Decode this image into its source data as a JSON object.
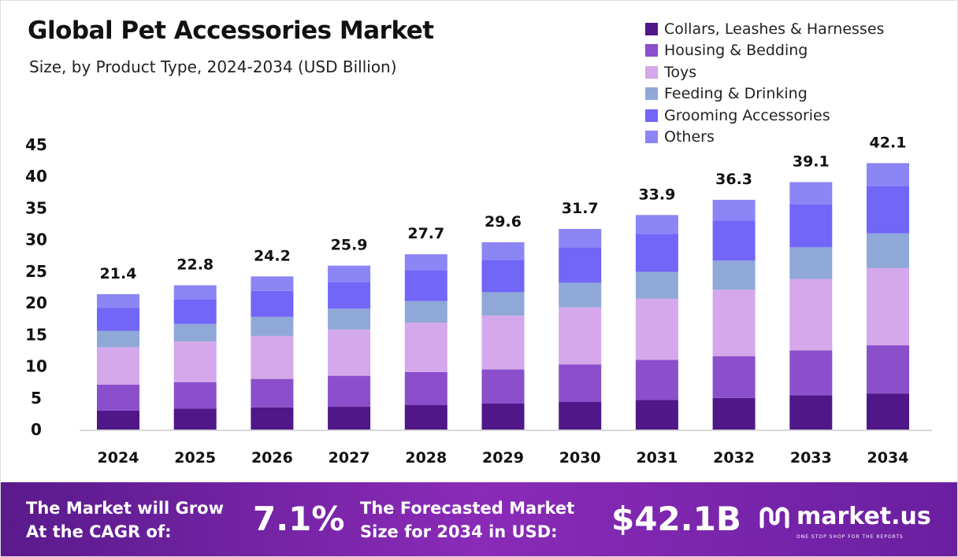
{
  "chart_data": {
    "type": "bar",
    "stacked": true,
    "title": "Global Pet Accessories Market",
    "subtitle": "Size, by Product Type, 2024-2034 (USD Billion)",
    "categories": [
      "2024",
      "2025",
      "2026",
      "2027",
      "2028",
      "2029",
      "2030",
      "2031",
      "2032",
      "2033",
      "2034"
    ],
    "totals": [
      "21.4",
      "22.8",
      "24.2",
      "25.9",
      "27.7",
      "29.6",
      "31.7",
      "33.9",
      "36.3",
      "39.1",
      "42.1"
    ],
    "series": [
      {
        "name": "Collars, Leashes & Harnesses",
        "color": "#4f1787",
        "values": [
          3.0,
          3.3,
          3.5,
          3.6,
          3.9,
          4.1,
          4.4,
          4.7,
          5.0,
          5.4,
          5.7
        ]
      },
      {
        "name": "Housing & Bedding",
        "color": "#8b4fcc",
        "values": [
          4.1,
          4.2,
          4.5,
          4.9,
          5.2,
          5.4,
          5.9,
          6.3,
          6.6,
          7.1,
          7.6
        ]
      },
      {
        "name": "Toys",
        "color": "#d4a8ea",
        "values": [
          5.9,
          6.4,
          6.8,
          7.3,
          7.8,
          8.5,
          9.0,
          9.7,
          10.5,
          11.3,
          12.2
        ]
      },
      {
        "name": "Feeding & Drinking",
        "color": "#8fa8d8",
        "values": [
          2.6,
          2.8,
          3.0,
          3.3,
          3.4,
          3.7,
          3.9,
          4.2,
          4.6,
          5.0,
          5.5
        ]
      },
      {
        "name": "Grooming Accessories",
        "color": "#7166f8",
        "values": [
          3.6,
          3.9,
          4.1,
          4.2,
          4.9,
          5.1,
          5.6,
          6.0,
          6.3,
          6.8,
          7.5
        ]
      },
      {
        "name": "Others",
        "color": "#8c85f5",
        "values": [
          2.2,
          2.2,
          2.3,
          2.6,
          2.5,
          2.8,
          2.9,
          3.0,
          3.3,
          3.5,
          3.6
        ]
      }
    ],
    "yticks": [
      "0",
      "5",
      "10",
      "15",
      "20",
      "25",
      "30",
      "35",
      "40",
      "45"
    ],
    "ylim": [
      0,
      45
    ],
    "grid": false,
    "legend": "top-right"
  },
  "footer": {
    "cagr_label_1": "The Market will Grow",
    "cagr_label_2": "At the CAGR of:",
    "cagr_value": "7.1%",
    "forecast_label_1": "The Forecasted Market",
    "forecast_label_2": "Size for 2034 in USD:",
    "forecast_value": "$42.1B",
    "brand": "market.us",
    "tagline": "ONE STOP SHOP FOR THE REPORTS"
  }
}
